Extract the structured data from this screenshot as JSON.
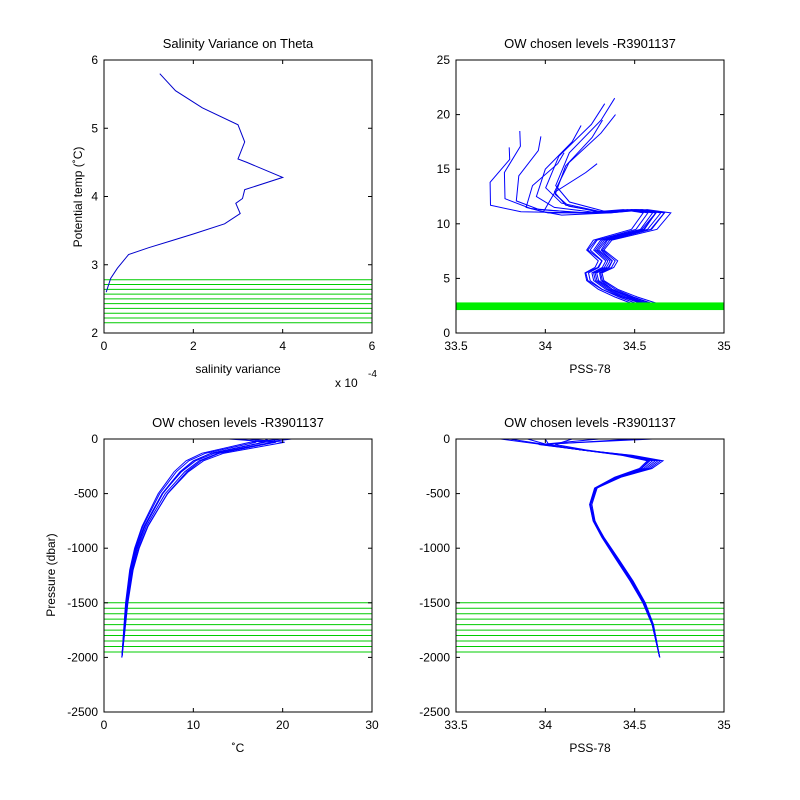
{
  "chart_data": [
    {
      "id": "p1",
      "type": "line",
      "title": "Salinity Variance on Theta",
      "xlabel": "salinity variance",
      "ylabel": "Potential temp (˚C)",
      "x_multiplier": "x 10",
      "x_exponent": "-4",
      "xlim": [
        0,
        6
      ],
      "ylim": [
        2,
        6
      ],
      "xticks": [
        0,
        2,
        4,
        6
      ],
      "yticks": [
        2,
        3,
        4,
        5,
        6
      ],
      "line_color": "#0000cc",
      "band_color": "#00cc00",
      "variance_curve": {
        "x": [
          1.25,
          1.6,
          2.2,
          3.0,
          3.15,
          3.0,
          3.2,
          4.0,
          3.15,
          3.1,
          2.95,
          3.05,
          2.7,
          2.0,
          1.5,
          1.0,
          0.55,
          0.3,
          0.15,
          0.05
        ],
        "y": [
          5.8,
          5.55,
          5.3,
          5.05,
          4.8,
          4.55,
          4.5,
          4.28,
          4.1,
          3.97,
          3.9,
          3.75,
          3.6,
          3.45,
          3.35,
          3.25,
          3.15,
          2.95,
          2.8,
          2.6
        ]
      },
      "chosen_levels": [
        2.15,
        2.22,
        2.29,
        2.36,
        2.43,
        2.5,
        2.57,
        2.64,
        2.71,
        2.78
      ]
    },
    {
      "id": "p2",
      "type": "line",
      "title": "OW chosen levels -R3901137",
      "xlabel": "PSS-78",
      "ylabel": "",
      "xlim": [
        33.5,
        35
      ],
      "ylim": [
        0,
        25
      ],
      "xticks": [
        33.5,
        34,
        34.5,
        35
      ],
      "yticks": [
        0,
        5,
        10,
        15,
        20,
        25
      ],
      "line_color": "#0000ff",
      "band_color": "#00ee00",
      "band_range": [
        2.1,
        2.8
      ],
      "profile": {
        "x": [
          34.57,
          34.45,
          34.35,
          34.28,
          34.27,
          34.33,
          34.35,
          34.28,
          34.32,
          34.55,
          34.62,
          34.5,
          34.3,
          34.05,
          33.95,
          34.0,
          34.15,
          34.2
        ],
        "y": [
          2.6,
          3.3,
          4.0,
          4.8,
          5.5,
          6.0,
          6.6,
          7.6,
          8.5,
          9.5,
          11.0,
          11.3,
          11.0,
          11.5,
          12.5,
          15.0,
          17.5,
          19.0
        ]
      },
      "variations": [
        {
          "sx": 1.0,
          "dx": 0.0,
          "top": 19.0,
          "tail": 0.0
        },
        {
          "sx": 1.08,
          "dx": 0.02,
          "top": 21.0,
          "tail": 0.12
        },
        {
          "sx": 0.95,
          "dx": -0.03,
          "top": 18.0,
          "tail": -0.2
        },
        {
          "sx": 1.12,
          "dx": -0.04,
          "top": 17.0,
          "tail": -0.35
        },
        {
          "sx": 0.9,
          "dx": 0.03,
          "top": 19.5,
          "tail": 0.08
        },
        {
          "sx": 1.05,
          "dx": 0.01,
          "top": 16.5,
          "tail": -0.1
        },
        {
          "sx": 0.97,
          "dx": -0.01,
          "top": 20.0,
          "tail": 0.2
        },
        {
          "sx": 1.1,
          "dx": 0.05,
          "top": 15.5,
          "tail": 0.05
        },
        {
          "sx": 0.93,
          "dx": -0.05,
          "top": 18.5,
          "tail": -0.3
        },
        {
          "sx": 1.02,
          "dx": 0.04,
          "top": 21.5,
          "tail": 0.15
        }
      ]
    },
    {
      "id": "p3",
      "type": "line",
      "title": "OW chosen levels -R3901137",
      "xlabel": "˚C",
      "ylabel": "Pressure (dbar)",
      "xlim": [
        0,
        30
      ],
      "ylim": [
        -2500,
        0
      ],
      "xticks": [
        0,
        10,
        20,
        30
      ],
      "yticks": [
        -2500,
        -2000,
        -1500,
        -1000,
        -500,
        0
      ],
      "line_color": "#0000ff",
      "band_color": "#00cc00",
      "profile": {
        "x": [
          2.0,
          2.2,
          2.5,
          3.0,
          3.6,
          4.5,
          5.5,
          6.5,
          7.5,
          8.5,
          10.0,
          12.0,
          15.0,
          18.0,
          21.0
        ],
        "y": [
          -2000,
          -1800,
          -1500,
          -1200,
          -1000,
          -800,
          -650,
          -500,
          -400,
          -300,
          -200,
          -130,
          -80,
          -30,
          0
        ]
      },
      "variations": [
        {
          "sx": 1.0,
          "dx": 0.0,
          "surf": 21.0
        },
        {
          "sx": 1.05,
          "dx": 0.5,
          "surf": 19.0
        },
        {
          "sx": 0.95,
          "dx": -0.3,
          "surf": 17.0
        },
        {
          "sx": 1.1,
          "dx": 0.8,
          "surf": 16.0
        },
        {
          "sx": 0.92,
          "dx": -0.5,
          "surf": 20.0
        },
        {
          "sx": 1.0,
          "dx": 1.2,
          "surf": 14.0
        },
        {
          "sx": 1.07,
          "dx": -0.2,
          "surf": 18.0
        },
        {
          "sx": 0.97,
          "dx": 0.3,
          "surf": 15.0
        }
      ],
      "chosen_levels": [
        -1500,
        -1550,
        -1600,
        -1650,
        -1700,
        -1750,
        -1800,
        -1850,
        -1900,
        -1950
      ]
    },
    {
      "id": "p4",
      "type": "line",
      "title": "OW chosen levels -R3901137",
      "xlabel": "PSS-78",
      "ylabel": "",
      "xlim": [
        33.5,
        35
      ],
      "ylim": [
        -2500,
        0
      ],
      "xticks": [
        33.5,
        34,
        34.5,
        35
      ],
      "yticks": [
        -2500,
        -2000,
        -1500,
        -1000,
        -500,
        0
      ],
      "line_color": "#0000ff",
      "band_color": "#00cc00",
      "profile": {
        "x": [
          34.64,
          34.6,
          34.55,
          34.48,
          34.4,
          34.32,
          34.27,
          34.25,
          34.28,
          34.4,
          34.55,
          34.6,
          34.45,
          34.2,
          34.0,
          33.8
        ],
        "y": [
          -2000,
          -1700,
          -1500,
          -1300,
          -1100,
          -900,
          -750,
          -600,
          -450,
          -350,
          -270,
          -200,
          -150,
          -100,
          -50,
          0
        ]
      },
      "variations": [
        {
          "sx": 1.0,
          "dx": 0.0,
          "surf": 33.8
        },
        {
          "sx": 1.1,
          "dx": 0.02,
          "surf": 33.75
        },
        {
          "sx": 0.9,
          "dx": -0.02,
          "surf": 34.0
        },
        {
          "sx": 1.15,
          "dx": 0.03,
          "surf": 34.3
        },
        {
          "sx": 0.95,
          "dx": -0.01,
          "surf": 33.9
        },
        {
          "sx": 1.05,
          "dx": 0.01,
          "surf": 34.5
        },
        {
          "sx": 0.85,
          "dx": 0.0,
          "surf": 34.15
        },
        {
          "sx": 1.2,
          "dx": 0.04,
          "surf": 34.6
        }
      ],
      "chosen_levels": [
        -1500,
        -1550,
        -1600,
        -1650,
        -1700,
        -1750,
        -1800,
        -1850,
        -1900,
        -1950
      ]
    }
  ]
}
